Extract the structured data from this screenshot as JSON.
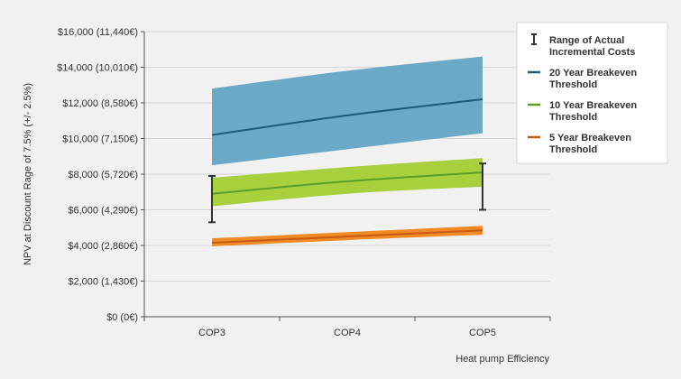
{
  "chart_data": {
    "type": "area",
    "title": "",
    "xlabel": "Heat pump Efficiency",
    "ylabel": "NPV at Discount Rage of 7.5% (+/- 2.5%)",
    "categories": [
      "COP3",
      "COP4",
      "COP5"
    ],
    "ylim": [
      0,
      16000
    ],
    "yticks": [
      0,
      2000,
      4000,
      6000,
      8000,
      10000,
      12000,
      14000,
      16000
    ],
    "ytick_labels": [
      "$0 (0€)",
      "$2,000 (1,430€)",
      "$4,000 (2,860€)",
      "$6,000 (4,290€)",
      "$8,000 (5,720€)",
      "$10,000 (7,150€)",
      "$12,000 (8,580€)",
      "$14,000 (10,010€)",
      "$16,000 (11,440€)"
    ],
    "grid": "horizontal",
    "legend_position": "top-right",
    "series": [
      {
        "name": "20 Year Breakeven Threshold",
        "color": "#1d5a78",
        "band_color": "#6aaac6",
        "values": [
          10200,
          11300,
          12200
        ],
        "lower": [
          8500,
          9400,
          10300
        ],
        "upper": [
          12800,
          13800,
          14600
        ]
      },
      {
        "name": "10 Year Breakeven Threshold",
        "color": "#5a9e28",
        "band_color": "#a8cf3c",
        "values": [
          6900,
          7600,
          8100
        ],
        "lower": [
          6200,
          6900,
          7300
        ],
        "upper": [
          7800,
          8400,
          8900
        ]
      },
      {
        "name": "5 Year Breakeven Threshold",
        "color": "#c75a12",
        "band_color": "#f08a24",
        "values": [
          4150,
          4500,
          4850
        ],
        "lower": [
          3950,
          4300,
          4600
        ],
        "upper": [
          4400,
          4750,
          5100
        ]
      }
    ],
    "error_bars": {
      "name": "Range of Actual Incremental Costs",
      "color": "#333333",
      "items": [
        {
          "x": "COP3",
          "low": 5300,
          "high": 7900
        },
        {
          "x": "COP5",
          "low": 6000,
          "high": 8600
        }
      ]
    }
  }
}
